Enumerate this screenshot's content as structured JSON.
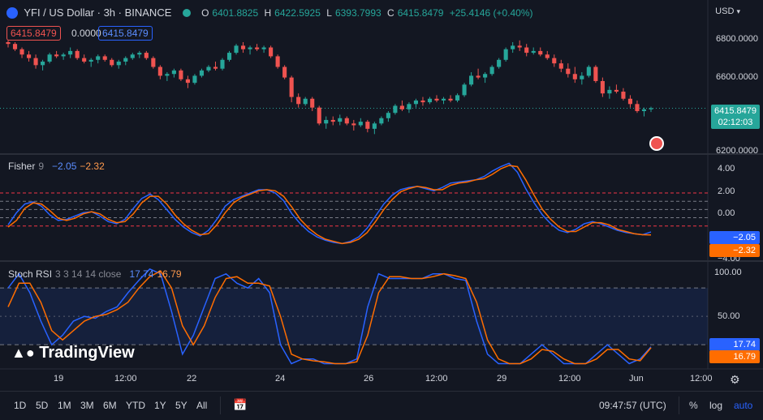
{
  "header": {
    "symbol_title": "YFI / US Dollar · 3h · BINANCE",
    "ohlc": [
      {
        "label": "O",
        "value": "6401.8825"
      },
      {
        "label": "H",
        "value": "6422.5925"
      },
      {
        "label": "L",
        "value": "6393.7993"
      },
      {
        "label": "C",
        "value": "6415.8479"
      }
    ],
    "change": "+25.4146 (+0.40%)",
    "sell_price": "6415.8479",
    "spread": "0.0000",
    "buy_price": "6415.8479",
    "currency": "USD"
  },
  "price_axis": {
    "ticks": [
      "6800.0000",
      "6600.0000",
      "6200.0000"
    ],
    "last_price": "6415.8479",
    "countdown": "02:12:03"
  },
  "fisher": {
    "name": "Fisher",
    "length": "9",
    "val1": "−2.05",
    "val2": "−2.32",
    "ticks": [
      "4.00",
      "2.00",
      "0.00",
      "−4.00"
    ],
    "label1": "−2.05",
    "label2": "−2.32"
  },
  "stoch": {
    "name": "Stoch RSI",
    "params": "3 3 14 14 close",
    "k": "17.74",
    "d": "16.79",
    "ticks": [
      "100.00",
      "50.00"
    ],
    "label_k": "17.74",
    "label_d": "16.79"
  },
  "time_axis": [
    "19",
    "12:00",
    "22",
    "24",
    "26",
    "12:00",
    "29",
    "12:00",
    "Jun",
    "12:00"
  ],
  "ranges": [
    "1D",
    "5D",
    "1M",
    "3M",
    "6M",
    "YTD",
    "1Y",
    "5Y",
    "All"
  ],
  "clock": "09:47:57 (UTC)",
  "scale_opts": [
    "%",
    "log",
    "auto"
  ],
  "watermark": "TradingView",
  "colors": {
    "up": "#26a69a",
    "down": "#ef5350",
    "blue": "#2962ff",
    "orange": "#ff6d00",
    "bg": "#131722"
  },
  "chart_data": [
    {
      "type": "candlestick",
      "title": "YFI / US Dollar · 3h · BINANCE",
      "ylim": [
        6180,
        6900
      ],
      "candles": [
        [
          6790,
          6800,
          6760,
          6780
        ],
        [
          6780,
          6790,
          6740,
          6750
        ],
        [
          6750,
          6760,
          6700,
          6720
        ],
        [
          6720,
          6740,
          6680,
          6700
        ],
        [
          6700,
          6720,
          6640,
          6660
        ],
        [
          6660,
          6690,
          6630,
          6680
        ],
        [
          6680,
          6730,
          6670,
          6720
        ],
        [
          6720,
          6740,
          6700,
          6710
        ],
        [
          6710,
          6730,
          6690,
          6720
        ],
        [
          6720,
          6760,
          6700,
          6740
        ],
        [
          6740,
          6750,
          6690,
          6700
        ],
        [
          6700,
          6720,
          6670,
          6680
        ],
        [
          6680,
          6700,
          6650,
          6690
        ],
        [
          6690,
          6720,
          6670,
          6710
        ],
        [
          6710,
          6720,
          6680,
          6690
        ],
        [
          6690,
          6700,
          6650,
          6660
        ],
        [
          6660,
          6690,
          6640,
          6680
        ],
        [
          6680,
          6710,
          6660,
          6700
        ],
        [
          6700,
          6730,
          6690,
          6720
        ],
        [
          6720,
          6740,
          6700,
          6730
        ],
        [
          6730,
          6740,
          6690,
          6700
        ],
        [
          6700,
          6710,
          6640,
          6650
        ],
        [
          6650,
          6660,
          6580,
          6600
        ],
        [
          6600,
          6620,
          6570,
          6610
        ],
        [
          6610,
          6640,
          6590,
          6630
        ],
        [
          6630,
          6640,
          6570,
          6580
        ],
        [
          6580,
          6600,
          6530,
          6560
        ],
        [
          6560,
          6610,
          6550,
          6600
        ],
        [
          6600,
          6640,
          6590,
          6630
        ],
        [
          6630,
          6660,
          6620,
          6650
        ],
        [
          6650,
          6680,
          6630,
          6640
        ],
        [
          6640,
          6700,
          6630,
          6690
        ],
        [
          6690,
          6740,
          6680,
          6730
        ],
        [
          6730,
          6780,
          6720,
          6770
        ],
        [
          6770,
          6790,
          6730,
          6750
        ],
        [
          6750,
          6770,
          6720,
          6760
        ],
        [
          6760,
          6780,
          6740,
          6750
        ],
        [
          6750,
          6770,
          6730,
          6760
        ],
        [
          6760,
          6770,
          6700,
          6710
        ],
        [
          6710,
          6720,
          6640,
          6650
        ],
        [
          6650,
          6660,
          6580,
          6590
        ],
        [
          6590,
          6600,
          6450,
          6480
        ],
        [
          6480,
          6500,
          6420,
          6440
        ],
        [
          6440,
          6480,
          6430,
          6470
        ],
        [
          6470,
          6480,
          6400,
          6420
        ],
        [
          6420,
          6430,
          6320,
          6330
        ],
        [
          6330,
          6370,
          6300,
          6350
        ],
        [
          6350,
          6370,
          6320,
          6340
        ],
        [
          6340,
          6380,
          6320,
          6360
        ],
        [
          6360,
          6370,
          6320,
          6330
        ],
        [
          6330,
          6350,
          6290,
          6320
        ],
        [
          6320,
          6360,
          6310,
          6340
        ],
        [
          6340,
          6350,
          6280,
          6300
        ],
        [
          6300,
          6340,
          6270,
          6330
        ],
        [
          6330,
          6370,
          6320,
          6360
        ],
        [
          6360,
          6400,
          6340,
          6390
        ],
        [
          6390,
          6440,
          6380,
          6430
        ],
        [
          6430,
          6460,
          6400,
          6410
        ],
        [
          6410,
          6450,
          6390,
          6440
        ],
        [
          6440,
          6470,
          6420,
          6460
        ],
        [
          6460,
          6480,
          6430,
          6450
        ],
        [
          6450,
          6480,
          6440,
          6470
        ],
        [
          6470,
          6490,
          6450,
          6460
        ],
        [
          6460,
          6480,
          6440,
          6470
        ],
        [
          6470,
          6490,
          6450,
          6460
        ],
        [
          6460,
          6500,
          6450,
          6490
        ],
        [
          6490,
          6560,
          6480,
          6550
        ],
        [
          6550,
          6620,
          6540,
          6600
        ],
        [
          6600,
          6640,
          6580,
          6590
        ],
        [
          6590,
          6620,
          6560,
          6610
        ],
        [
          6610,
          6660,
          6600,
          6650
        ],
        [
          6650,
          6700,
          6640,
          6690
        ],
        [
          6690,
          6760,
          6680,
          6750
        ],
        [
          6750,
          6790,
          6730,
          6770
        ],
        [
          6770,
          6800,
          6740,
          6760
        ],
        [
          6760,
          6780,
          6710,
          6730
        ],
        [
          6730,
          6760,
          6720,
          6740
        ],
        [
          6740,
          6760,
          6710,
          6720
        ],
        [
          6720,
          6740,
          6690,
          6700
        ],
        [
          6700,
          6720,
          6650,
          6670
        ],
        [
          6670,
          6690,
          6620,
          6640
        ],
        [
          6640,
          6670,
          6590,
          6610
        ],
        [
          6610,
          6650,
          6560,
          6580
        ],
        [
          6580,
          6620,
          6550,
          6600
        ],
        [
          6600,
          6660,
          6590,
          6650
        ],
        [
          6650,
          6660,
          6560,
          6570
        ],
        [
          6570,
          6590,
          6480,
          6500
        ],
        [
          6500,
          6540,
          6470,
          6520
        ],
        [
          6520,
          6550,
          6500,
          6510
        ],
        [
          6510,
          6530,
          6460,
          6470
        ],
        [
          6470,
          6490,
          6420,
          6440
        ],
        [
          6440,
          6460,
          6390,
          6400
        ],
        [
          6400,
          6420,
          6370,
          6410
        ],
        [
          6410,
          6425,
          6395,
          6416
        ]
      ]
    },
    {
      "type": "line",
      "title": "Fisher 9",
      "ylim": [
        -4.4,
        4.6
      ],
      "levels": [
        1.5,
        0.75,
        -0.75,
        -1.5
      ],
      "series": [
        {
          "name": "Fisher",
          "values": [
            -1.4,
            -0.3,
            0.5,
            0.7,
            0.3,
            -0.5,
            -1.0,
            -0.9,
            -0.6,
            -0.3,
            -0.2,
            -0.6,
            -1.1,
            -1.3,
            -0.9,
            0.1,
            1.0,
            1.4,
            0.9,
            0.0,
            -0.9,
            -1.6,
            -2.1,
            -2.4,
            -1.9,
            -0.9,
            0.3,
            0.9,
            1.2,
            1.5,
            1.8,
            1.8,
            1.5,
            0.8,
            -0.4,
            -1.3,
            -2.0,
            -2.5,
            -2.8,
            -3.0,
            -3.1,
            -2.9,
            -2.5,
            -1.7,
            -0.6,
            0.5,
            1.3,
            1.8,
            2.0,
            2.1,
            1.9,
            1.7,
            2.0,
            2.4,
            2.5,
            2.6,
            2.7,
            3.0,
            3.5,
            3.9,
            4.2,
            3.4,
            1.9,
            0.6,
            -0.5,
            -1.3,
            -1.9,
            -2.1,
            -1.8,
            -1.3,
            -1.1,
            -1.3,
            -1.6,
            -1.9,
            -2.1,
            -2.2,
            -2.3,
            -2.05
          ]
        },
        {
          "name": "Trigger",
          "values": [
            -1.6,
            -1.0,
            0.1,
            0.6,
            0.5,
            -0.1,
            -0.8,
            -1.0,
            -0.8,
            -0.4,
            -0.2,
            -0.4,
            -0.9,
            -1.2,
            -1.1,
            -0.4,
            0.6,
            1.2,
            1.2,
            0.5,
            -0.5,
            -1.3,
            -1.9,
            -2.3,
            -2.2,
            -1.4,
            -0.3,
            0.6,
            1.1,
            1.4,
            1.7,
            1.8,
            1.7,
            1.2,
            0.2,
            -0.9,
            -1.7,
            -2.3,
            -2.7,
            -2.9,
            -3.1,
            -3.0,
            -2.7,
            -2.1,
            -1.1,
            0.0,
            0.9,
            1.6,
            1.9,
            2.1,
            2.0,
            1.8,
            1.8,
            2.2,
            2.4,
            2.5,
            2.7,
            2.8,
            3.2,
            3.7,
            4.0,
            3.9,
            2.7,
            1.3,
            0.0,
            -0.9,
            -1.6,
            -2.0,
            -2.0,
            -1.6,
            -1.2,
            -1.2,
            -1.4,
            -1.8,
            -2.0,
            -2.2,
            -2.3,
            -2.32
          ]
        }
      ]
    },
    {
      "type": "line",
      "title": "Stoch RSI 3 3 14 14 close",
      "ylim": [
        -3,
        105
      ],
      "band": [
        20,
        80
      ],
      "midline": 50,
      "series": [
        {
          "name": "K",
          "values": [
            80,
            95,
            75,
            45,
            20,
            30,
            45,
            50,
            48,
            55,
            60,
            75,
            88,
            100,
            95,
            55,
            10,
            30,
            60,
            90,
            95,
            85,
            80,
            90,
            75,
            20,
            0,
            5,
            5,
            0,
            0,
            0,
            5,
            60,
            95,
            90,
            90,
            90,
            90,
            95,
            95,
            90,
            88,
            45,
            10,
            0,
            0,
            0,
            10,
            20,
            10,
            0,
            0,
            0,
            10,
            20,
            10,
            0,
            5,
            17.74
          ]
        },
        {
          "name": "D",
          "values": [
            60,
            85,
            85,
            65,
            35,
            25,
            35,
            45,
            50,
            52,
            57,
            65,
            80,
            92,
            98,
            80,
            40,
            20,
            40,
            70,
            90,
            92,
            85,
            85,
            82,
            50,
            10,
            5,
            3,
            2,
            0,
            0,
            2,
            30,
            75,
            92,
            92,
            90,
            90,
            92,
            95,
            93,
            90,
            65,
            25,
            5,
            0,
            0,
            5,
            15,
            13,
            5,
            0,
            0,
            5,
            15,
            15,
            5,
            3,
            16.79
          ]
        }
      ]
    }
  ]
}
